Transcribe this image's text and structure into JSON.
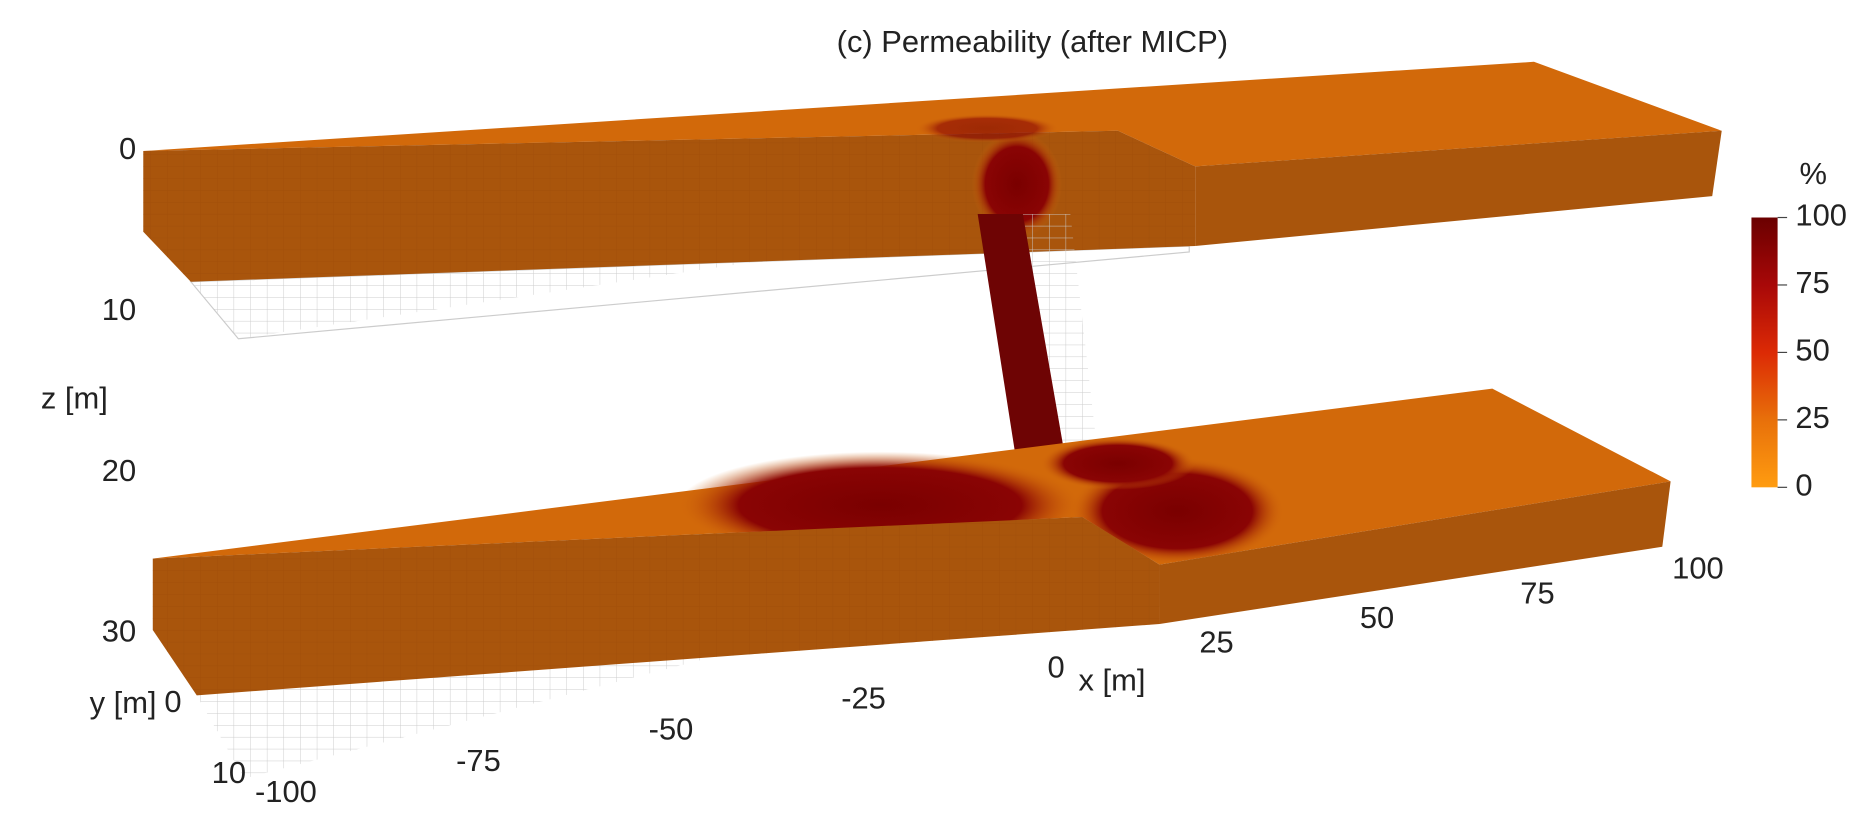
{
  "chart_data": {
    "type": "volume3d",
    "title": "(c) Permeability (after MICP)",
    "xlabel": "x [m]",
    "ylabel": "y [m]",
    "zlabel": "z [m]",
    "xlim": [
      -100,
      100
    ],
    "xticks": [
      -100,
      -75,
      -50,
      -25,
      0,
      25,
      50,
      75,
      100
    ],
    "ylim": [
      0,
      10
    ],
    "yticks": [
      0,
      10
    ],
    "zlim": [
      0,
      30
    ],
    "zticks": [
      0,
      10,
      20,
      30
    ],
    "colorbar": {
      "label": "%",
      "lim": [
        0,
        100
      ],
      "ticks": [
        0,
        25,
        50,
        75,
        100
      ],
      "colors": [
        "#ff9c10",
        "#e8700a",
        "#dc2a05",
        "#a80808",
        "#6a0000"
      ]
    }
  }
}
